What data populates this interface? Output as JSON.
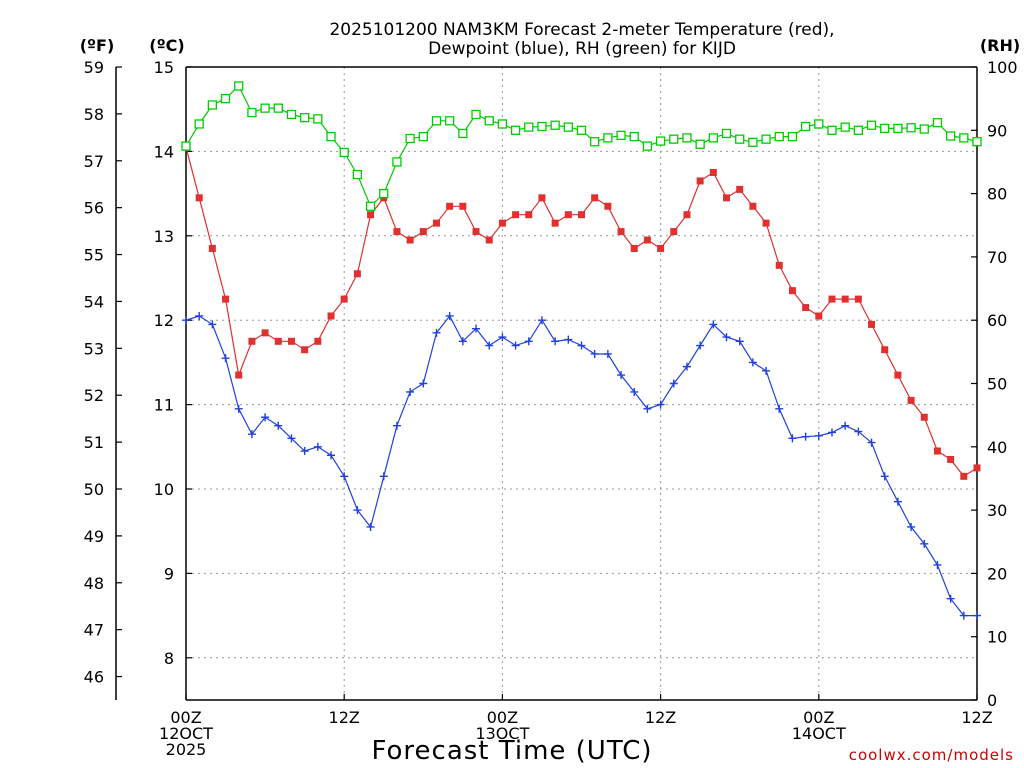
{
  "chart_data": {
    "type": "line",
    "title": [
      "2025101200 NAM3KM Forecast 2-meter Temperature (red),",
      "Dewpoint (blue), RH (green) for KIJD"
    ],
    "xlabel": "Forecast Time (UTC)",
    "credit": "coolwx.com/models",
    "left_unit_f": "(ºF)",
    "left_unit_c": "(ºC)",
    "right_unit": "(RH)",
    "x_range_hours": [
      0,
      60
    ],
    "x_ticks": [
      {
        "hour": 0,
        "lines": [
          "00Z",
          "12OCT",
          "2025"
        ]
      },
      {
        "hour": 12,
        "lines": [
          "12Z"
        ]
      },
      {
        "hour": 24,
        "lines": [
          "00Z",
          "13OCT"
        ]
      },
      {
        "hour": 36,
        "lines": [
          "12Z"
        ]
      },
      {
        "hour": 48,
        "lines": [
          "00Z",
          "14OCT"
        ]
      },
      {
        "hour": 60,
        "lines": [
          "12Z"
        ]
      }
    ],
    "y_range_c": [
      7.5,
      15.0
    ],
    "y_ticks_c": [
      8,
      9,
      10,
      11,
      12,
      13,
      14,
      15
    ],
    "y_ticks_f": [
      46,
      47,
      48,
      49,
      50,
      51,
      52,
      53,
      54,
      55,
      56,
      57,
      58,
      59
    ],
    "y_range_rh": [
      0,
      100
    ],
    "y_ticks_rh": [
      0,
      10,
      20,
      30,
      40,
      50,
      60,
      70,
      80,
      90,
      100
    ],
    "series": [
      {
        "name": "2-meter Temperature",
        "units": "C",
        "color": "#e03030",
        "marker": "filled-square",
        "values": [
          14.05,
          13.45,
          12.85,
          12.25,
          11.35,
          11.75,
          11.85,
          11.75,
          11.75,
          11.65,
          11.75,
          12.05,
          12.25,
          12.55,
          13.25,
          13.45,
          13.05,
          12.95,
          13.05,
          13.15,
          13.35,
          13.35,
          13.05,
          12.95,
          13.15,
          13.25,
          13.25,
          13.45,
          13.15,
          13.25,
          13.25,
          13.45,
          13.35,
          13.05,
          12.85,
          12.95,
          12.85,
          13.05,
          13.25,
          13.65,
          13.75,
          13.45,
          13.55,
          13.35,
          13.15,
          12.65,
          12.35,
          12.15,
          12.05,
          12.25,
          12.25,
          12.25,
          11.95,
          11.65,
          11.35,
          11.05,
          10.85,
          10.45,
          10.35,
          10.15,
          10.25
        ]
      },
      {
        "name": "Dewpoint",
        "units": "C",
        "color": "#2040e0",
        "marker": "plus",
        "values": [
          12.0,
          12.05,
          11.95,
          11.55,
          10.95,
          10.65,
          10.85,
          10.75,
          10.6,
          10.45,
          10.5,
          10.4,
          10.15,
          9.75,
          9.55,
          10.15,
          10.75,
          11.15,
          11.25,
          11.85,
          12.05,
          11.75,
          11.9,
          11.7,
          11.8,
          11.7,
          11.75,
          12.0,
          11.75,
          11.77,
          11.7,
          11.6,
          11.6,
          11.35,
          11.15,
          10.95,
          11.0,
          11.25,
          11.45,
          11.7,
          11.95,
          11.8,
          11.75,
          11.5,
          11.4,
          10.95,
          10.6,
          10.62,
          10.63,
          10.67,
          10.75,
          10.68,
          10.55,
          10.15,
          9.85,
          9.55,
          9.35,
          9.1,
          8.7,
          8.5,
          8.5
        ]
      },
      {
        "name": "RH",
        "units": "%",
        "color": "#00cc00",
        "marker": "open-square",
        "values": [
          87.5,
          91.0,
          94.0,
          95.0,
          97.0,
          92.8,
          93.5,
          93.5,
          92.5,
          92.0,
          91.8,
          89.0,
          86.5,
          83.0,
          78.0,
          80.0,
          85.0,
          88.7,
          89.0,
          91.5,
          91.5,
          89.5,
          92.5,
          91.5,
          91.0,
          90.0,
          90.5,
          90.6,
          90.8,
          90.5,
          90.0,
          88.2,
          88.8,
          89.2,
          89.0,
          87.5,
          88.3,
          88.6,
          88.8,
          87.8,
          88.8,
          89.5,
          88.6,
          88.1,
          88.6,
          89.0,
          89.0,
          90.6,
          91.0,
          90.0,
          90.5,
          90.0,
          90.8,
          90.3,
          90.3,
          90.4,
          90.2,
          91.2,
          89.1,
          88.8,
          88.2
        ]
      }
    ]
  }
}
